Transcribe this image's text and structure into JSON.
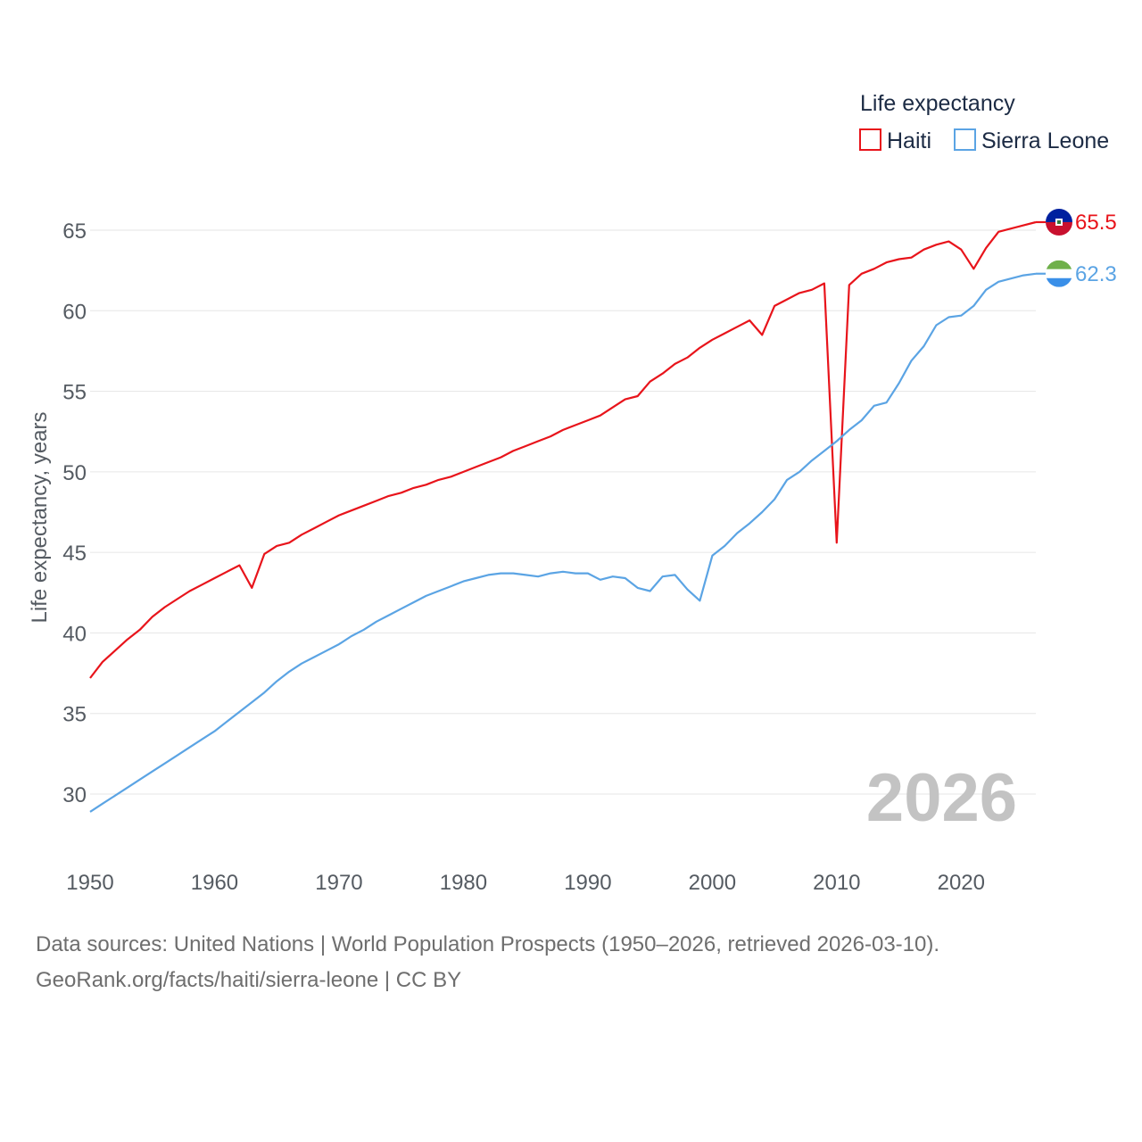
{
  "chart_data": {
    "type": "line",
    "title": "Life expectancy",
    "ylabel": "Life expectancy, years",
    "xlabel": "",
    "year_label": "2026",
    "xlim": [
      1950,
      2026
    ],
    "ylim": [
      27.5,
      67
    ],
    "x_ticks": [
      1950,
      1960,
      1970,
      1980,
      1990,
      2000,
      2010,
      2020
    ],
    "y_ticks": [
      30,
      35,
      40,
      45,
      50,
      55,
      60,
      65
    ],
    "grid": true,
    "legend_position": "top-right",
    "series": [
      {
        "name": "Haiti",
        "color": "#e8141b",
        "end_label": "65.5",
        "flag": "haiti-flag",
        "x_start": 1950,
        "values": [
          37.2,
          38.2,
          38.9,
          39.6,
          40.2,
          41.0,
          41.6,
          42.1,
          42.6,
          43.0,
          43.4,
          43.8,
          44.2,
          42.8,
          44.9,
          45.4,
          45.6,
          46.1,
          46.5,
          46.9,
          47.3,
          47.6,
          47.9,
          48.2,
          48.5,
          48.7,
          49.0,
          49.2,
          49.5,
          49.7,
          50.0,
          50.3,
          50.6,
          50.9,
          51.3,
          51.6,
          51.9,
          52.2,
          52.6,
          52.9,
          53.2,
          53.5,
          54.0,
          54.5,
          54.7,
          55.6,
          56.1,
          56.7,
          57.1,
          57.7,
          58.2,
          58.6,
          59.0,
          59.4,
          58.5,
          60.3,
          60.7,
          61.1,
          61.3,
          61.7,
          45.6,
          61.6,
          62.3,
          62.6,
          63.0,
          63.2,
          63.3,
          63.8,
          64.1,
          64.3,
          63.8,
          62.6,
          63.9,
          64.9,
          65.1,
          65.3,
          65.5
        ]
      },
      {
        "name": "Sierra Leone",
        "color": "#5ba4e4",
        "end_label": "62.3",
        "flag": "sierra-leone-flag",
        "x_start": 1950,
        "values": [
          28.9,
          29.4,
          29.9,
          30.4,
          30.9,
          31.4,
          31.9,
          32.4,
          32.9,
          33.4,
          33.9,
          34.5,
          35.1,
          35.7,
          36.3,
          37.0,
          37.6,
          38.1,
          38.5,
          38.9,
          39.3,
          39.8,
          40.2,
          40.7,
          41.1,
          41.5,
          41.9,
          42.3,
          42.6,
          42.9,
          43.2,
          43.4,
          43.6,
          43.7,
          43.7,
          43.6,
          43.5,
          43.7,
          43.8,
          43.7,
          43.7,
          43.3,
          43.5,
          43.4,
          42.8,
          42.6,
          43.5,
          43.6,
          42.7,
          42.0,
          44.8,
          45.4,
          46.2,
          46.8,
          47.5,
          48.3,
          49.5,
          50.0,
          50.7,
          51.3,
          51.9,
          52.6,
          53.2,
          54.1,
          54.3,
          55.5,
          56.9,
          57.8,
          59.1,
          59.6,
          59.7,
          60.3,
          61.3,
          61.8,
          62.0,
          62.2,
          62.3
        ]
      }
    ]
  },
  "footer": {
    "line1": "Data sources: United Nations | World Population Prospects (1950–2026, retrieved 2026-03-10).",
    "line2": "GeoRank.org/facts/haiti/sierra-leone | CC BY"
  }
}
